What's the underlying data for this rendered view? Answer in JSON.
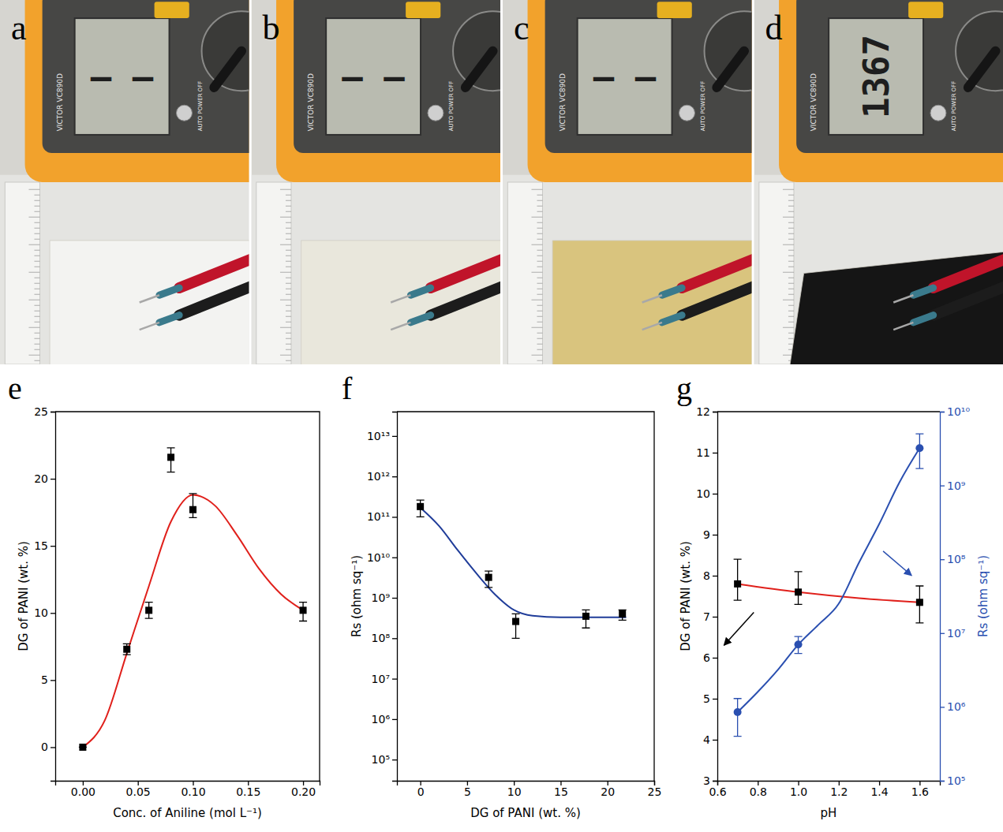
{
  "photos": {
    "device_text": [
      "VICTOR VC890D",
      "AUTO POWER OFF"
    ],
    "panels": [
      {
        "panel": "a",
        "display": "— —",
        "color": "#f3f3f1"
      },
      {
        "panel": "b",
        "display": "— —",
        "color": "#e9e7dc"
      },
      {
        "panel": "c",
        "display": "— —",
        "color": "#d9c47e"
      },
      {
        "panel": "d",
        "display": "1367",
        "color": "#151515"
      }
    ]
  },
  "chart_data": [
    {
      "type": "scatter",
      "panel": "e",
      "x_label": "Conc. of Aniline (mol L⁻¹)",
      "y_label": "DG of PANI (wt. %)",
      "xlim": [
        -0.025,
        0.215
      ],
      "xticks": [
        {
          "value": 0,
          "label": "0.00"
        },
        0.05,
        {
          "value": 0.1,
          "label": "0.10"
        },
        0.15,
        {
          "value": 0.2,
          "label": "0.20"
        }
      ],
      "ylim": [
        -2.5,
        25
      ],
      "yticks": [
        0,
        5,
        10,
        15,
        20,
        25
      ],
      "grid": false,
      "series": [
        {
          "type": "line",
          "line_style": "smooth",
          "color": "#e0201b",
          "x": [
            0,
            0.02,
            0.04,
            0.06,
            0.08,
            0.1,
            0.12,
            0.14,
            0.16,
            0.18,
            0.2
          ],
          "values": [
            0,
            2,
            7,
            12,
            16.8,
            18.8,
            18,
            15.8,
            13.3,
            11.4,
            10.2
          ]
        },
        {
          "type": "scatter",
          "marker": "square",
          "color": "#000000",
          "x": [
            0,
            0.04,
            0.06,
            0.08,
            0.1,
            0.2
          ],
          "values": [
            0,
            7.3,
            10.2,
            21.6,
            17.7,
            10.2
          ],
          "y_low": [
            0,
            6.9,
            9.6,
            20.5,
            17.1,
            9.4
          ],
          "y_high": [
            0,
            7.7,
            10.8,
            22.3,
            18.9,
            10.8
          ]
        }
      ]
    },
    {
      "type": "scatter",
      "panel": "f",
      "x_label": "DG of PANI (wt. %)",
      "y_label": "Rs (ohm sq⁻¹)",
      "log": "y",
      "xlim": [
        -2.5,
        25
      ],
      "xticks": [
        0,
        5,
        10,
        15,
        20,
        25
      ],
      "ylim": [
        30000,
        40000000000000.0
      ],
      "yticks": [
        {
          "value": 100000.0,
          "label": "10⁵"
        },
        {
          "value": 1000000.0,
          "label": "10⁶"
        },
        {
          "value": 10000000.0,
          "label": "10⁷"
        },
        {
          "value": 100000000.0,
          "label": "10⁸"
        },
        {
          "value": 1000000000.0,
          "label": "10⁹"
        },
        {
          "value": 10000000000.0,
          "label": "10¹⁰"
        },
        {
          "value": 100000000000.0,
          "label": "10¹¹"
        },
        {
          "value": 1000000000000.0,
          "label": "10¹²"
        },
        {
          "value": 10000000000000.0,
          "label": "10¹³"
        }
      ],
      "grid": false,
      "series": [
        {
          "type": "line",
          "line_style": "smooth",
          "color": "#1f3c99",
          "x": [
            0,
            2,
            4,
            6,
            8,
            10,
            12,
            15,
            18,
            22
          ],
          "values": [
            170000000000.0,
            60000000000.0,
            15000000000.0,
            4000000000.0,
            1200000000.0,
            500000000.0,
            360000000.0,
            330000000.0,
            330000000.0,
            330000000.0
          ]
        },
        {
          "type": "scatter",
          "marker": "square",
          "color": "#000000",
          "x": [
            0,
            7.3,
            10.2,
            17.7,
            21.6
          ],
          "values": [
            180000000000.0,
            3200000000.0,
            260000000.0,
            350000000.0,
            400000000.0
          ],
          "y_low": [
            100000000000.0,
            1800000000.0,
            100000000.0,
            180000000.0,
            280000000.0
          ],
          "y_high": [
            260000000000.0,
            4600000000.0,
            400000000.0,
            500000000.0,
            500000000.0
          ]
        }
      ]
    },
    {
      "type": "scatter",
      "panel": "g",
      "x_label": "pH",
      "y_label": "DG of PANI (wt. %)",
      "y2_label": "Rs (ohm sq⁻¹)",
      "log": "y2",
      "xlim": [
        0.6,
        1.7
      ],
      "xticks": [
        0.6,
        0.8,
        {
          "value": 1,
          "label": "1.0"
        },
        1.2,
        1.4,
        1.6
      ],
      "ylim": [
        3,
        12
      ],
      "yticks": [
        3,
        4,
        5,
        6,
        7,
        8,
        9,
        10,
        11,
        12
      ],
      "y2lim": [
        100000.0,
        10000000000.0
      ],
      "y2ticks": [
        {
          "value": 100000.0,
          "label": "10⁵"
        },
        {
          "value": 1000000.0,
          "label": "10⁶"
        },
        {
          "value": 10000000.0,
          "label": "10⁷"
        },
        {
          "value": 100000000.0,
          "label": "10⁸"
        },
        {
          "value": 1000000000.0,
          "label": "10⁹"
        },
        {
          "value": 10000000000.0,
          "label": "10¹⁰"
        }
      ],
      "grid": false,
      "series": [
        {
          "type": "line",
          "line_style": "smooth",
          "color": "#e0201b",
          "x": [
            0.7,
            1.0,
            1.3,
            1.6
          ],
          "values": [
            7.8,
            7.6,
            7.45,
            7.35
          ]
        },
        {
          "type": "scatter",
          "marker": "square",
          "color": "#000000",
          "x": [
            0.7,
            1.0,
            1.6
          ],
          "values": [
            7.8,
            7.6,
            7.35
          ],
          "y_low": [
            7.4,
            7.3,
            6.85
          ],
          "y_high": [
            8.4,
            8.1,
            7.75
          ]
        },
        {
          "type": "line",
          "line_style": "smooth",
          "color": "#2a4fb0",
          "axis": "y2",
          "x": [
            0.7,
            0.8,
            0.9,
            1.0,
            1.1,
            1.2,
            1.3,
            1.4,
            1.5,
            1.6
          ],
          "values": [
            850000.0,
            1600000.0,
            3200000.0,
            7000000.0,
            13000000.0,
            25000000.0,
            90000000.0,
            300000000.0,
            1100000000.0,
            3200000000.0
          ]
        },
        {
          "type": "scatter",
          "marker": "circle",
          "color": "#2a4fb0",
          "axis": "y2",
          "x": [
            0.7,
            1.0,
            1.6
          ],
          "values": [
            850000.0,
            7000000.0,
            3200000000.0
          ],
          "y_low": [
            400000.0,
            5300000.0,
            1700000000.0
          ],
          "y_high": [
            1300000.0,
            9000000.0,
            5000000000.0
          ]
        }
      ]
    }
  ]
}
